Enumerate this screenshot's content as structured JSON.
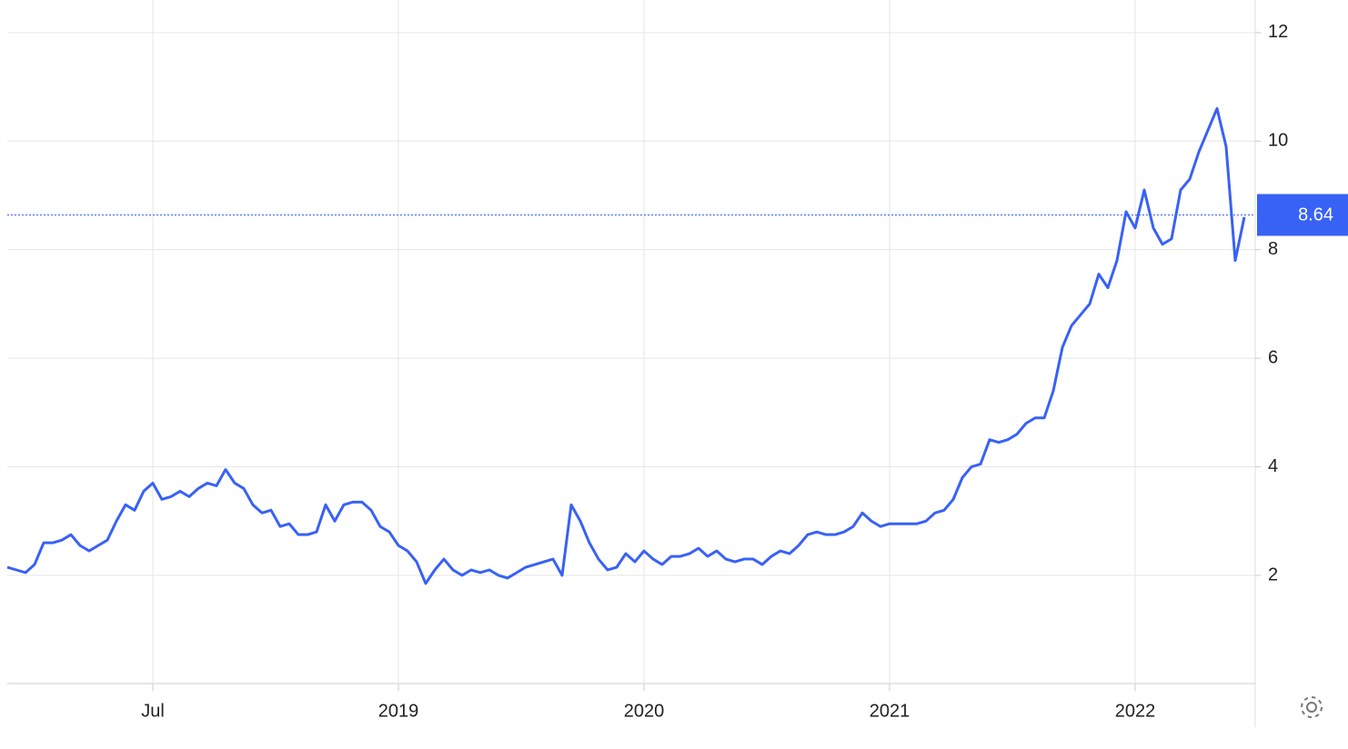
{
  "chart_data": {
    "type": "line",
    "categories": [
      null,
      null,
      null,
      null,
      null,
      null,
      null,
      null,
      null,
      null,
      null,
      null,
      null,
      null,
      null,
      null,
      "Jul",
      null,
      null,
      null,
      null,
      null,
      null,
      null,
      null,
      null,
      null,
      null,
      null,
      null,
      null,
      null,
      null,
      null,
      null,
      null,
      null,
      null,
      null,
      null,
      null,
      null,
      null,
      "2019",
      null,
      null,
      null,
      null,
      null,
      null,
      null,
      null,
      null,
      null,
      null,
      null,
      null,
      null,
      null,
      null,
      null,
      null,
      null,
      null,
      null,
      null,
      null,
      null,
      null,
      null,
      "2020",
      null,
      null,
      null,
      null,
      null,
      null,
      null,
      null,
      null,
      null,
      null,
      null,
      null,
      null,
      null,
      null,
      null,
      null,
      null,
      null,
      null,
      null,
      null,
      null,
      null,
      null,
      "2021",
      null,
      null,
      null,
      null,
      null,
      null,
      null,
      null,
      null,
      null,
      null,
      null,
      null,
      null,
      null,
      null,
      null,
      null,
      null,
      null,
      null,
      null,
      null,
      null,
      null,
      null,
      "2022",
      null,
      null,
      null,
      null,
      null,
      null,
      null,
      null,
      null,
      null,
      null,
      null
    ],
    "series": [
      {
        "color": "#3861f6",
        "values": [
          2.15,
          2.1,
          2.05,
          2.2,
          2.6,
          2.6,
          2.65,
          2.75,
          2.55,
          2.45,
          2.55,
          2.65,
          3.0,
          3.3,
          3.2,
          3.55,
          3.7,
          3.4,
          3.45,
          3.55,
          3.45,
          3.6,
          3.7,
          3.65,
          3.95,
          3.7,
          3.6,
          3.3,
          3.15,
          3.2,
          2.9,
          2.95,
          2.75,
          2.75,
          2.8,
          3.3,
          3.0,
          3.3,
          3.35,
          3.35,
          3.2,
          2.9,
          2.8,
          2.55,
          2.45,
          2.25,
          1.85,
          2.1,
          2.3,
          2.1,
          2.0,
          2.1,
          2.05,
          2.1,
          2.0,
          1.95,
          2.05,
          2.15,
          2.2,
          2.25,
          2.3,
          2.0,
          3.3,
          3.0,
          2.6,
          2.3,
          2.1,
          2.15,
          2.4,
          2.25,
          2.45,
          2.3,
          2.2,
          2.35,
          2.35,
          2.4,
          2.5,
          2.35,
          2.45,
          2.3,
          2.25,
          2.3,
          2.3,
          2.2,
          2.35,
          2.45,
          2.4,
          2.55,
          2.75,
          2.8,
          2.75,
          2.75,
          2.8,
          2.9,
          3.15,
          3.0,
          2.9,
          2.95,
          2.95,
          2.95,
          2.95,
          3.0,
          3.15,
          3.2,
          3.4,
          3.8,
          4.0,
          4.05,
          4.5,
          4.45,
          4.5,
          4.6,
          4.8,
          4.9,
          4.9,
          5.4,
          6.2,
          6.6,
          6.8,
          7.0,
          7.55,
          7.3,
          7.8,
          8.7,
          8.4,
          9.1,
          8.4,
          8.1,
          8.2,
          9.1,
          9.3,
          9.8,
          10.2,
          10.6,
          9.9,
          7.8,
          8.6
        ]
      }
    ],
    "current_value": 8.64,
    "ylim": [
      0,
      12.6
    ],
    "yticks": [
      2,
      4,
      6,
      8,
      10,
      12
    ],
    "grid": true
  }
}
